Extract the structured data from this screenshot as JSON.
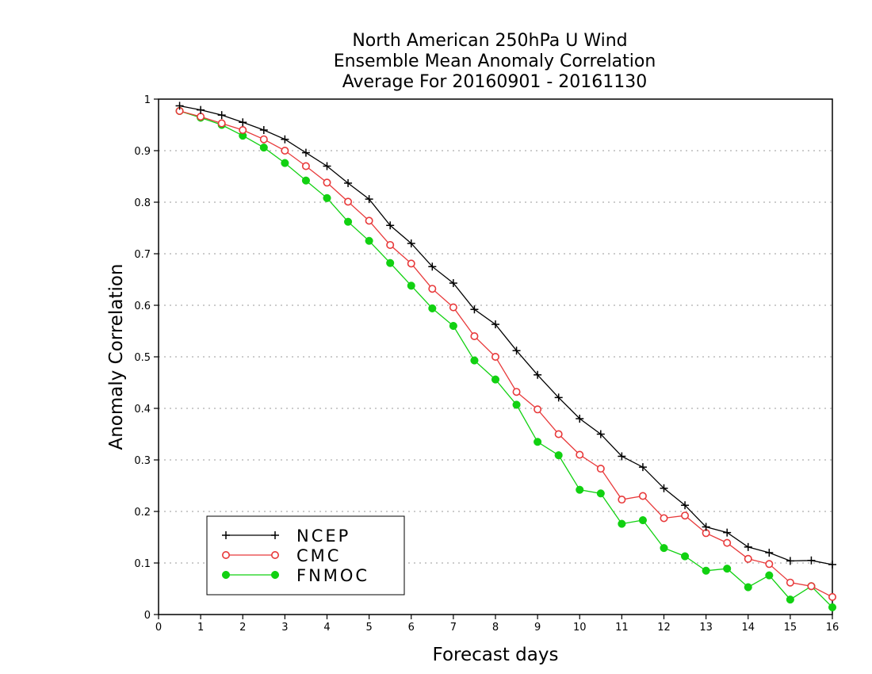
{
  "chart_data": {
    "type": "line",
    "title": [
      "North American 250hPa U Wind",
      "Ensemble Mean Anomaly Correlation",
      "Average For 20160901 - 20161130"
    ],
    "xlabel": "Forecast days",
    "ylabel": "Anomaly Correlation",
    "xlim": [
      0,
      16
    ],
    "ylim": [
      0,
      1
    ],
    "x_ticks": [
      "0",
      "1",
      "2",
      "3",
      "4",
      "5",
      "6",
      "7",
      "8",
      "9",
      "10",
      "11",
      "12",
      "13",
      "14",
      "15",
      "16"
    ],
    "y_ticks": [
      "0",
      "0.1",
      "0.2",
      "0.3",
      "0.4",
      "0.5",
      "0.6",
      "0.7",
      "0.8",
      "0.9",
      "1"
    ],
    "grid": "horizontal dotted",
    "legend_position": "bottom-left",
    "x": [
      0.5,
      1,
      1.5,
      2,
      2.5,
      3,
      3.5,
      4,
      4.5,
      5,
      5.5,
      6,
      6.5,
      7,
      7.5,
      8,
      8.5,
      9,
      9.5,
      10,
      10.5,
      11,
      11.5,
      12,
      12.5,
      13,
      13.5,
      14,
      14.5,
      15,
      15.5,
      16
    ],
    "series": [
      {
        "name": "NCEP",
        "color": "#000000",
        "marker": "plus",
        "values": [
          0.987,
          0.979,
          0.969,
          0.955,
          0.94,
          0.922,
          0.896,
          0.87,
          0.837,
          0.806,
          0.755,
          0.72,
          0.675,
          0.643,
          0.592,
          0.563,
          0.512,
          0.465,
          0.421,
          0.38,
          0.35,
          0.307,
          0.286,
          0.245,
          0.212,
          0.17,
          0.159,
          0.131,
          0.12,
          0.104,
          0.105,
          0.097
        ]
      },
      {
        "name": "CMC",
        "color": "#e8393a",
        "marker": "open-circle",
        "values": [
          0.977,
          0.966,
          0.953,
          0.94,
          0.922,
          0.9,
          0.87,
          0.838,
          0.801,
          0.764,
          0.717,
          0.681,
          0.632,
          0.596,
          0.54,
          0.5,
          0.432,
          0.398,
          0.35,
          0.31,
          0.283,
          0.223,
          0.23,
          0.187,
          0.192,
          0.158,
          0.139,
          0.108,
          0.098,
          0.062,
          0.055,
          0.034
        ]
      },
      {
        "name": "FNMOC",
        "color": "#11d111",
        "marker": "filled-circle",
        "values": [
          0.977,
          0.964,
          0.95,
          0.929,
          0.906,
          0.876,
          0.842,
          0.808,
          0.762,
          0.725,
          0.682,
          0.638,
          0.594,
          0.56,
          0.493,
          0.456,
          0.407,
          0.335,
          0.309,
          0.242,
          0.235,
          0.176,
          0.183,
          0.129,
          0.113,
          0.085,
          0.089,
          0.053,
          0.076,
          0.029,
          0.055,
          0.014
        ]
      }
    ]
  }
}
